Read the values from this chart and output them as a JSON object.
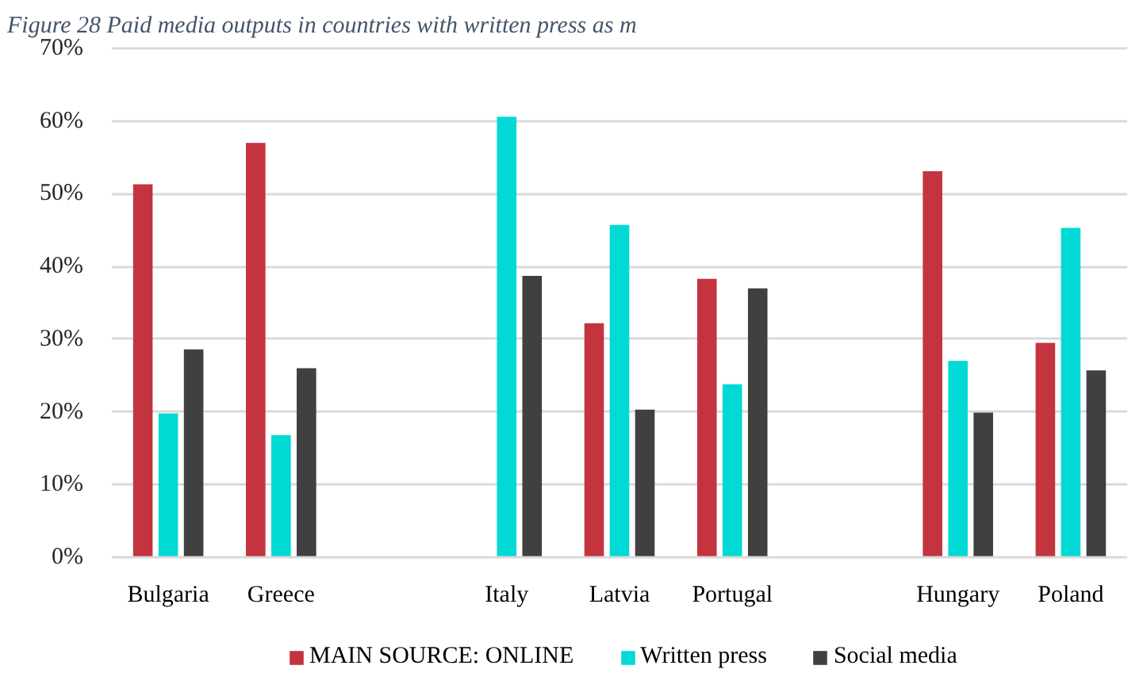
{
  "chart_data": {
    "type": "bar",
    "title": "Figure 28 Paid media outputs in countries with written press as m",
    "categories": [
      "Bulgaria",
      "Greece",
      null,
      "Italy",
      "Latvia",
      "Portugal",
      null,
      "Hungary",
      "Poland"
    ],
    "series": [
      {
        "name": "MAIN SOURCE: ONLINE",
        "color": "#c3343f",
        "values": [
          51.3,
          57.0,
          null,
          null,
          32.2,
          38.3,
          null,
          53.1,
          29.5
        ]
      },
      {
        "name": "Written press",
        "color": "#00d9d4",
        "values": [
          19.8,
          16.8,
          null,
          60.6,
          45.7,
          23.8,
          null,
          27.0,
          45.3
        ]
      },
      {
        "name": "Social media",
        "color": "#404040",
        "values": [
          28.6,
          26.0,
          null,
          38.7,
          20.3,
          37.0,
          null,
          19.9,
          25.7
        ]
      }
    ],
    "ylim": [
      0,
      70
    ],
    "yticks": [
      {
        "value": 0,
        "label": "0%"
      },
      {
        "value": 10,
        "label": "10%"
      },
      {
        "value": 20,
        "label": "20%"
      },
      {
        "value": 30,
        "label": "30%"
      },
      {
        "value": 40,
        "label": "40%"
      },
      {
        "value": 50,
        "label": "50%"
      },
      {
        "value": 60,
        "label": "60%"
      },
      {
        "value": 70,
        "label": "70%"
      }
    ],
    "grid": "y",
    "legend": "bottom"
  }
}
